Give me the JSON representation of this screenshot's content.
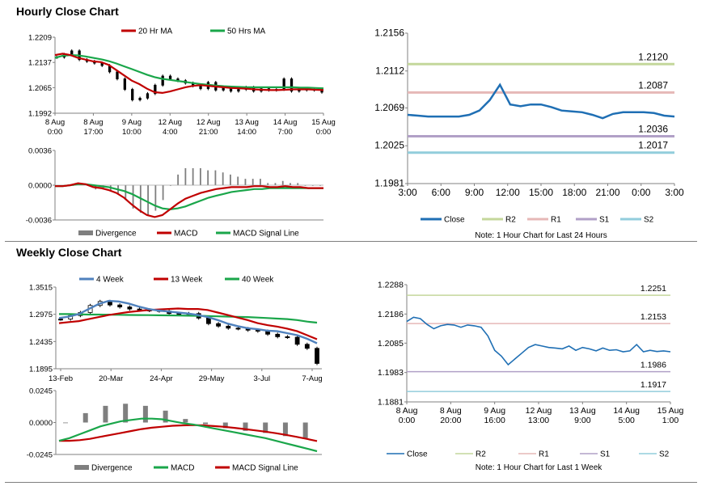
{
  "sections": {
    "hourly_title": "Hourly Close Chart",
    "weekly_title": "Weekly Close Chart"
  },
  "colors": {
    "ma20": "#c00000",
    "ma50": "#1aa64a",
    "close": "#1f6fb4",
    "r2": "#c4d79b",
    "r1": "#e6b8b7",
    "s1": "#b1a0c7",
    "s2": "#92cddc",
    "divergence": "#7f7f7f",
    "w4": "#4f81bd",
    "w13": "#c00000",
    "w40": "#1aa64a"
  },
  "chart_data": [
    {
      "id": "hourly_price",
      "type": "line",
      "legend": [
        "20 Hr MA",
        "50 Hrs MA"
      ],
      "y_ticks": [
        "1.2209",
        "1.2137",
        "1.2065",
        "1.1992"
      ],
      "ylim": [
        1.1992,
        1.2209
      ],
      "x_ticks": [
        [
          "8 Aug",
          "0:00"
        ],
        [
          "8 Aug",
          "17:00"
        ],
        [
          "9 Aug",
          "10:00"
        ],
        [
          "12 Aug",
          "4:00"
        ],
        [
          "12 Aug",
          "21:00"
        ],
        [
          "13 Aug",
          "14:00"
        ],
        [
          "14 Aug",
          "7:00"
        ],
        [
          "15 Aug",
          "0:00"
        ]
      ],
      "ma20": [
        1.2158,
        1.2162,
        1.2158,
        1.215,
        1.2145,
        1.214,
        1.2138,
        1.213,
        1.2115,
        1.21,
        1.2085,
        1.2075,
        1.2062,
        1.2052,
        1.205,
        1.2054,
        1.206,
        1.2066,
        1.207,
        1.2072,
        1.207,
        1.2068,
        1.2066,
        1.2064,
        1.2063,
        1.2062,
        1.206,
        1.2059,
        1.2058,
        1.2058,
        1.2059,
        1.206,
        1.206,
        1.206,
        1.2059,
        1.2058
      ],
      "ma50": [
        1.215,
        1.2156,
        1.2158,
        1.2157,
        1.2154,
        1.215,
        1.2146,
        1.2141,
        1.2134,
        1.2126,
        1.2118,
        1.211,
        1.2102,
        1.2095,
        1.209,
        1.2087,
        1.2084,
        1.2081,
        1.2078,
        1.2075,
        1.2073,
        1.2071,
        1.2069,
        1.2068,
        1.2067,
        1.2066,
        1.2066,
        1.2066,
        1.2066,
        1.2066,
        1.2066,
        1.2066,
        1.2065,
        1.2065,
        1.2064,
        1.2063
      ],
      "close": [
        1.2152,
        1.216,
        1.217,
        1.2145,
        1.214,
        1.2135,
        1.2128,
        1.211,
        1.209,
        1.206,
        1.203,
        1.2035,
        1.2048,
        1.2072,
        1.2098,
        1.209,
        1.2085,
        1.2078,
        1.207,
        1.2062,
        1.208,
        1.2058,
        1.2064,
        1.2055,
        1.206,
        1.2066,
        1.2055,
        1.2062,
        1.2058,
        1.206,
        1.209,
        1.2055,
        1.2062,
        1.2058,
        1.206,
        1.2052
      ]
    },
    {
      "id": "hourly_macd",
      "type": "line",
      "legend": [
        "Divergence",
        "MACD",
        "MACD Signal Line"
      ],
      "y_ticks": [
        "0.0036",
        "0.0000",
        "-0.0036"
      ],
      "ylim": [
        -0.0036,
        0.0036
      ],
      "macd": [
        -0.0001,
        -0.0001,
        0.0,
        0.0002,
        0.0001,
        -0.0002,
        -0.0003,
        -0.0005,
        -0.0008,
        -0.0013,
        -0.002,
        -0.0026,
        -0.0031,
        -0.0033,
        -0.0031,
        -0.0025,
        -0.0019,
        -0.0014,
        -0.0011,
        -0.0008,
        -0.0006,
        -0.0004,
        -0.0003,
        -0.0002,
        -0.0002,
        -0.0002,
        -0.0001,
        -0.0001,
        -0.0002,
        -0.0002,
        -0.0001,
        -0.0002,
        -0.0002,
        -0.0003,
        -0.0003,
        -0.0003
      ],
      "signal": [
        -0.0001,
        -0.0001,
        0.0,
        0.0001,
        0.0001,
        0.0,
        -0.0001,
        -0.0002,
        -0.0004,
        -0.0006,
        -0.0009,
        -0.0013,
        -0.0017,
        -0.0021,
        -0.0024,
        -0.0025,
        -0.0024,
        -0.0022,
        -0.0019,
        -0.0016,
        -0.0013,
        -0.0011,
        -0.0009,
        -0.0007,
        -0.0006,
        -0.0005,
        -0.0004,
        -0.0004,
        -0.0003,
        -0.0003,
        -0.0003,
        -0.0003,
        -0.0003,
        -0.0003,
        -0.0003,
        -0.0003
      ]
    },
    {
      "id": "hourly_pivot",
      "type": "line",
      "title_note": "Note: 1 Hour Chart for Last 24 Hours",
      "legend": [
        "Close",
        "R2",
        "R1",
        "S1",
        "S2"
      ],
      "y_ticks": [
        "1.2156",
        "1.2112",
        "1.2069",
        "1.2025",
        "1.1981"
      ],
      "ylim": [
        1.1981,
        1.2156
      ],
      "x_ticks": [
        "3:00",
        "6:00",
        "9:00",
        "12:00",
        "15:00",
        "18:00",
        "21:00",
        "0:00",
        "3:00"
      ],
      "levels": {
        "R2": 1.212,
        "R1": 1.2087,
        "S1": 1.2036,
        "S2": 1.2017
      },
      "level_labels": {
        "R2": "1.2120",
        "R1": "1.2087",
        "S1": "1.2036",
        "S2": "1.2017"
      },
      "close": [
        1.2061,
        1.206,
        1.2059,
        1.2059,
        1.2059,
        1.2059,
        1.2061,
        1.2066,
        1.2078,
        1.2096,
        1.2073,
        1.2071,
        1.2073,
        1.2073,
        1.207,
        1.2066,
        1.2065,
        1.2064,
        1.2061,
        1.2057,
        1.2062,
        1.2064,
        1.2064,
        1.2064,
        1.2063,
        1.206,
        1.2059
      ]
    },
    {
      "id": "weekly_price",
      "type": "line",
      "legend": [
        "4 Week",
        "13 Week",
        "40 Week"
      ],
      "y_ticks": [
        "1.3515",
        "1.2975",
        "1.2435",
        "1.1895"
      ],
      "ylim": [
        1.1895,
        1.3515
      ],
      "x_ticks": [
        "13-Feb",
        "20-Mar",
        "24-Apr",
        "29-May",
        "3-Jul",
        "7-Aug"
      ],
      "w4": [
        1.29,
        1.293,
        1.298,
        1.308,
        1.318,
        1.324,
        1.323,
        1.319,
        1.313,
        1.308,
        1.305,
        1.303,
        1.301,
        1.299,
        1.296,
        1.292,
        1.286,
        1.279,
        1.274,
        1.27,
        1.268,
        1.265,
        1.264,
        1.26,
        1.256,
        1.249,
        1.24
      ],
      "w13": [
        1.28,
        1.282,
        1.284,
        1.288,
        1.292,
        1.296,
        1.299,
        1.302,
        1.304,
        1.306,
        1.307,
        1.308,
        1.309,
        1.308,
        1.308,
        1.306,
        1.301,
        1.296,
        1.291,
        1.286,
        1.28,
        1.276,
        1.273,
        1.269,
        1.264,
        1.256,
        1.248
      ],
      "w40": [
        1.298,
        1.298,
        1.2975,
        1.297,
        1.297,
        1.2968,
        1.2965,
        1.2962,
        1.296,
        1.2958,
        1.2955,
        1.2953,
        1.295,
        1.2948,
        1.2945,
        1.294,
        1.2935,
        1.293,
        1.2925,
        1.292,
        1.291,
        1.29,
        1.289,
        1.288,
        1.286,
        1.283,
        1.281
      ],
      "close": [
        1.288,
        1.295,
        1.301,
        1.315,
        1.323,
        1.316,
        1.312,
        1.308,
        1.306,
        1.305,
        1.304,
        1.299,
        1.299,
        1.299,
        1.29,
        1.279,
        1.274,
        1.27,
        1.269,
        1.266,
        1.264,
        1.258,
        1.253,
        1.252,
        1.238,
        1.23,
        1.2
      ]
    },
    {
      "id": "weekly_macd",
      "type": "line",
      "legend": [
        "Divergence",
        "MACD",
        "MACD Signal Line"
      ],
      "y_ticks": [
        "0.0245",
        "0.0000",
        "-0.0245"
      ],
      "ylim": [
        -0.0245,
        0.0245
      ],
      "macd": [
        -0.014,
        -0.012,
        -0.009,
        -0.006,
        -0.003,
        -0.001,
        0.001,
        0.002,
        0.003,
        0.003,
        0.0025,
        0.001,
        -0.0005,
        -0.0015,
        -0.003,
        -0.0045,
        -0.006,
        -0.0075,
        -0.009,
        -0.0105,
        -0.012,
        -0.014,
        -0.016,
        -0.018,
        -0.02,
        -0.022
      ],
      "signal": [
        -0.014,
        -0.014,
        -0.0135,
        -0.0125,
        -0.011,
        -0.0095,
        -0.008,
        -0.0065,
        -0.005,
        -0.004,
        -0.0032,
        -0.0025,
        -0.0022,
        -0.002,
        -0.0022,
        -0.0027,
        -0.0033,
        -0.0041,
        -0.005,
        -0.006,
        -0.007,
        -0.0082,
        -0.0095,
        -0.011,
        -0.0125,
        -0.0142
      ]
    },
    {
      "id": "weekly_pivot",
      "type": "line",
      "title_note": "Note: 1 Hour Chart for Last 1 Week",
      "legend": [
        "Close",
        "R2",
        "R1",
        "S1",
        "S2"
      ],
      "y_ticks": [
        "1.2288",
        "1.2186",
        "1.2085",
        "1.1983",
        "1.1881"
      ],
      "ylim": [
        1.1881,
        1.2288
      ],
      "x_ticks": [
        [
          "8 Aug",
          "0:00"
        ],
        [
          "8 Aug",
          "20:00"
        ],
        [
          "9 Aug",
          "16:00"
        ],
        [
          "12 Aug",
          "13:00"
        ],
        [
          "13 Aug",
          "9:00"
        ],
        [
          "14 Aug",
          "5:00"
        ],
        [
          "15 Aug",
          "1:00"
        ]
      ],
      "levels": {
        "R2": 1.2251,
        "R1": 1.2153,
        "S1": 1.1986,
        "S2": 1.1917
      },
      "level_labels": {
        "R2": "1.2251",
        "R1": "1.2153",
        "S1": "1.1986",
        "S2": "1.1917"
      },
      "close": [
        1.216,
        1.2175,
        1.217,
        1.215,
        1.2135,
        1.2145,
        1.215,
        1.2148,
        1.214,
        1.2148,
        1.2145,
        1.214,
        1.211,
        1.206,
        1.204,
        1.201,
        1.203,
        1.205,
        1.207,
        1.208,
        1.2075,
        1.207,
        1.2068,
        1.2065,
        1.2075,
        1.206,
        1.207,
        1.2065,
        1.2058,
        1.2068,
        1.206,
        1.2062,
        1.2055,
        1.2058,
        1.208,
        1.2055,
        1.206,
        1.2056,
        1.2058,
        1.2055
      ]
    }
  ]
}
